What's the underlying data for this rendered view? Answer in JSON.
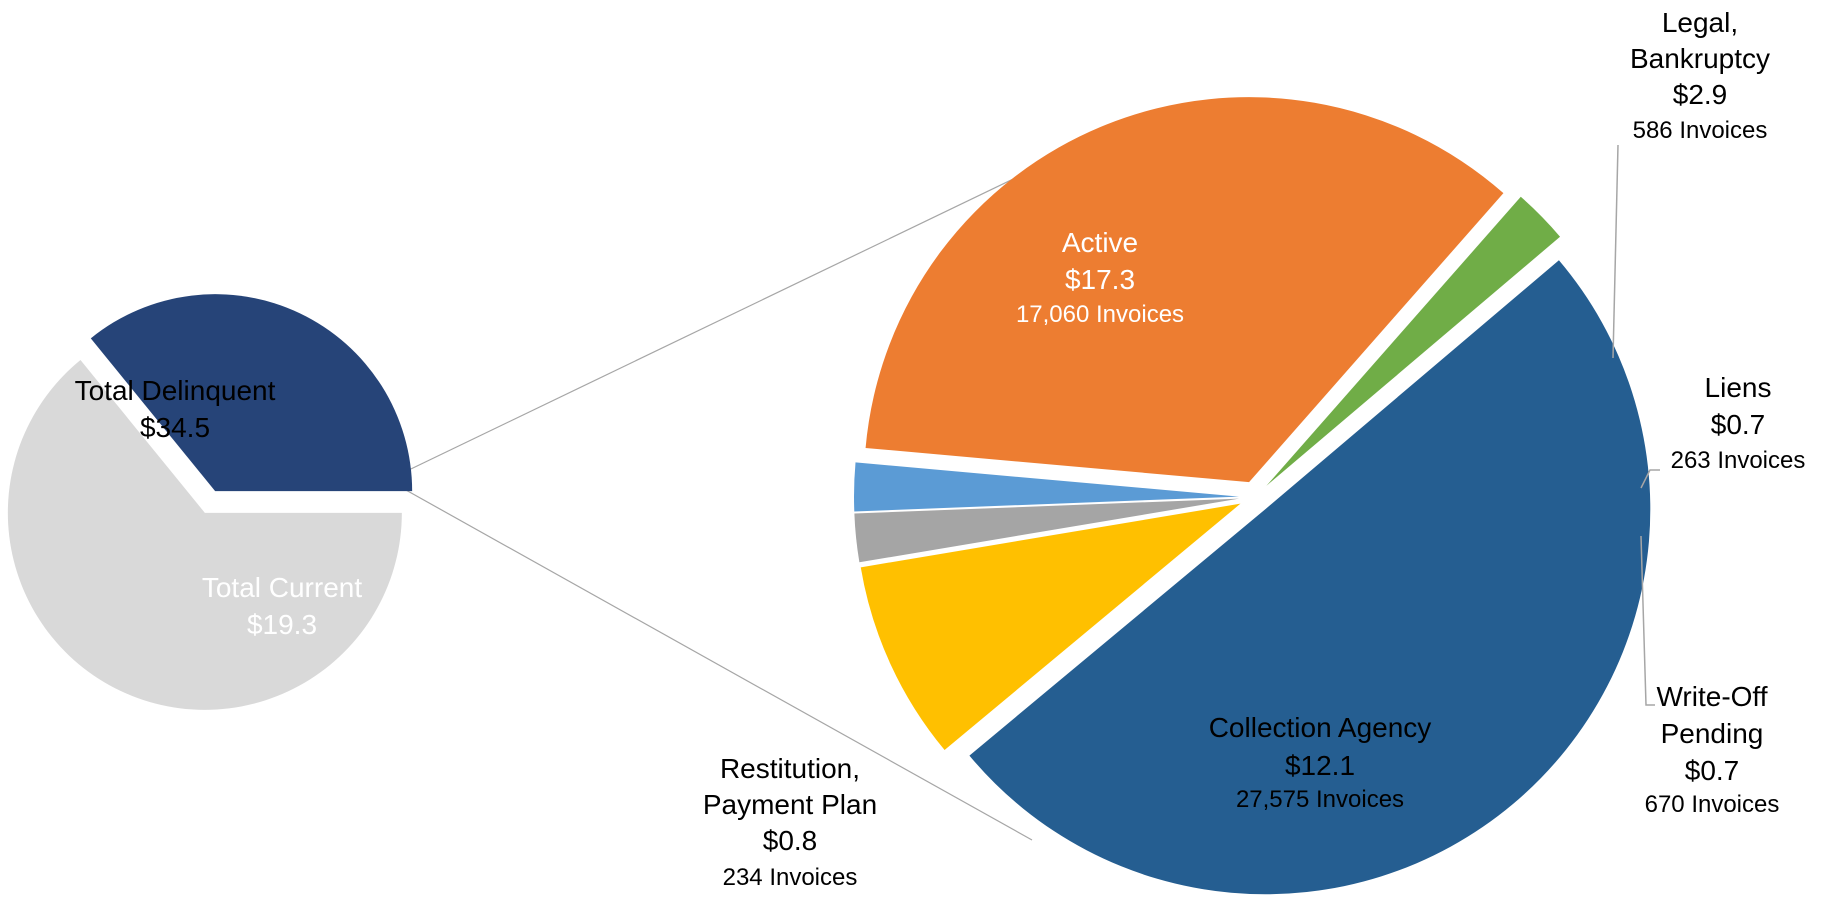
{
  "chart_data": [
    {
      "type": "pie",
      "categories": [
        "Total Delinquent",
        "Total Current"
      ],
      "values": [
        34.5,
        19.3
      ],
      "value_labels": [
        "$34.5",
        "$19.3"
      ],
      "colors": [
        "#d9d9d9",
        "#264478"
      ]
    },
    {
      "type": "pie",
      "categories": [
        "Active",
        "Legal, Bankruptcy",
        "Liens",
        "Write-Off Pending",
        "Collection Agency",
        "Restitution, Payment Plan"
      ],
      "values": [
        17.3,
        2.9,
        0.7,
        0.7,
        12.1,
        0.8
      ],
      "value_labels": [
        "$17.3",
        "$2.9",
        "$0.7",
        "$0.7",
        "$12.1",
        "$0.8"
      ],
      "invoices": [
        "17,060 Invoices",
        "586 Invoices",
        "263 Invoices",
        "670 Invoices",
        "27,575 Invoices",
        "234 Invoices"
      ],
      "colors": [
        "#255e91",
        "#ffc000",
        "#a5a5a5",
        "#5b9bd5",
        "#ed7d31",
        "#70ad47"
      ]
    }
  ]
}
